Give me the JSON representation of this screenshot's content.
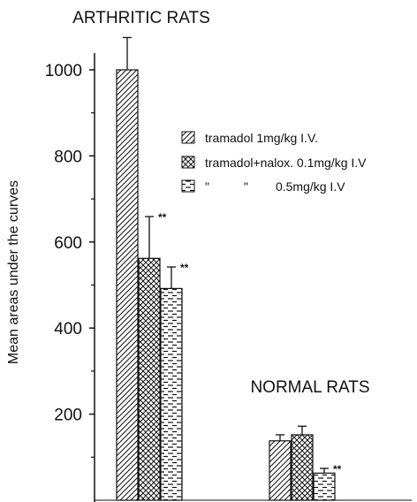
{
  "chart_data": {
    "type": "bar",
    "ylabel": "Mean areas under the curves",
    "ylim": [
      0,
      1000
    ],
    "yticks": [
      200,
      400,
      600,
      800,
      1000
    ],
    "groups": [
      {
        "title": "ARTHRITIC RATS",
        "values": [
          1000,
          562,
          492
        ],
        "errors": [
          75,
          97,
          50
        ],
        "annotations": [
          "",
          "**",
          "**"
        ]
      },
      {
        "title": "NORMAL RATS",
        "values": [
          138,
          152,
          63
        ],
        "errors": [
          14,
          20,
          11
        ],
        "annotations": [
          "",
          "",
          "**"
        ]
      }
    ],
    "series": [
      {
        "legend_text": "tramadol 1mg/kg I.V.",
        "pattern": "diagonal-hatch"
      },
      {
        "legend_text": "tramadol+nalox. 0.1mg/kg I.V",
        "pattern": "cross-hatch"
      },
      {
        "legend_text": "\"          \"        0.5mg/kg I.V",
        "pattern": "dashed-horizontal"
      }
    ]
  }
}
